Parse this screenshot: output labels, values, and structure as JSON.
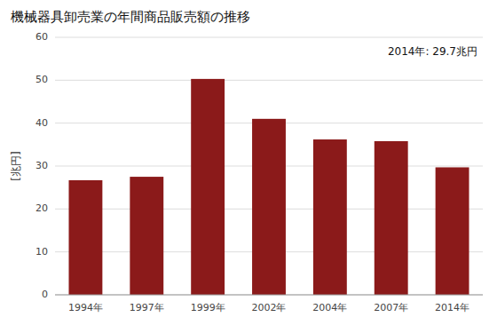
{
  "chart_data": {
    "type": "bar",
    "title": "機械器具卸売業の年間商品販売額の推移",
    "ylabel": "[兆円]",
    "annotation": "2014年: 29.7兆円",
    "categories": [
      "1994年",
      "1997年",
      "1999年",
      "2002年",
      "2004年",
      "2007年",
      "2014年"
    ],
    "values": [
      26.7,
      27.5,
      50.3,
      41.0,
      36.2,
      35.8,
      29.7
    ],
    "color": "#8B1A1A",
    "ylim": [
      0,
      60
    ],
    "yticks": [
      0,
      10,
      20,
      30,
      40,
      50,
      60
    ],
    "grid": true
  }
}
